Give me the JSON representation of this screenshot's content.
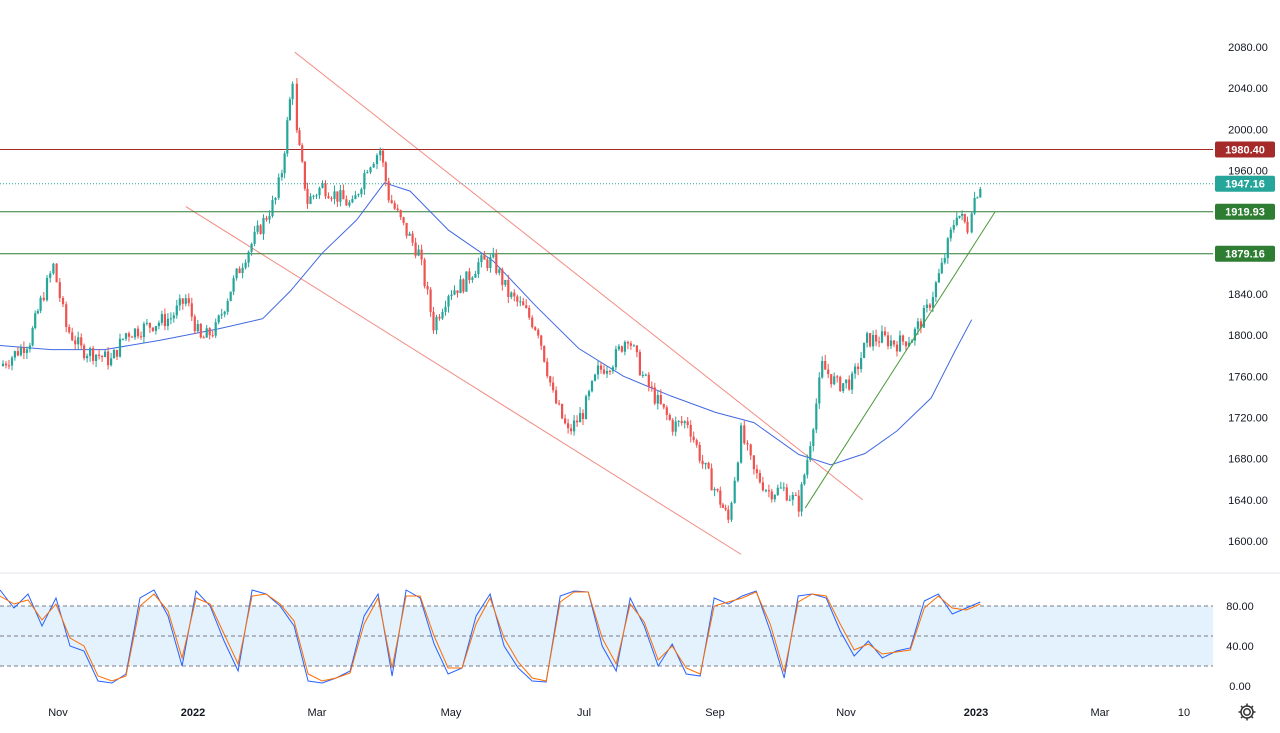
{
  "colors": {
    "up": "#26a69a",
    "down": "#ef5350",
    "ma": "#4169e1",
    "channel": "#f28b82",
    "trendline": "#4a9a3a",
    "resistance": "#a52a2a",
    "support": "#2e7d32",
    "current": "#26a69a",
    "stoch_k": "#2962ff",
    "stoch_d": "#ff6d00",
    "stoch_band": "#e3f2fd"
  },
  "settings_icon": "gear-icon",
  "chart_data": [
    {
      "type": "candlestick",
      "title": "",
      "xlabel": "",
      "ylabel": "",
      "x_tick_labels": [
        "Nov",
        "2022",
        "Mar",
        "May",
        "Jul",
        "Sep",
        "Nov",
        "2023",
        "Mar",
        "10"
      ],
      "y_tick_labels": [
        "2080.00",
        "2040.00",
        "2000.00",
        "1960.00",
        "1840.00",
        "1800.00",
        "1760.00",
        "1720.00",
        "1680.00",
        "1640.00",
        "1600.00"
      ],
      "ylim": [
        1585,
        2095
      ],
      "grid": false,
      "horizontal_levels": [
        {
          "value": 1980.4,
          "label": "1980.40",
          "kind": "resistance"
        },
        {
          "value": 1919.93,
          "label": "1919.93",
          "kind": "support"
        },
        {
          "value": 1879.16,
          "label": "1879.16",
          "kind": "support"
        }
      ],
      "current_price": {
        "value": 1947.16,
        "label": "1947.16"
      },
      "moving_average_points": [
        [
          "2021-10-22",
          1790
        ],
        [
          "2021-11-15",
          1786
        ],
        [
          "2021-12-10",
          1786
        ],
        [
          "2022-01-05",
          1795
        ],
        [
          "2022-02-01",
          1806
        ],
        [
          "2022-02-22",
          1816
        ],
        [
          "2022-03-07",
          1843
        ],
        [
          "2022-03-22",
          1880
        ],
        [
          "2022-04-07",
          1912
        ],
        [
          "2022-04-20",
          1948
        ],
        [
          "2022-05-02",
          1940
        ],
        [
          "2022-05-20",
          1902
        ],
        [
          "2022-06-10",
          1872
        ],
        [
          "2022-06-30",
          1828
        ],
        [
          "2022-07-20",
          1787
        ],
        [
          "2022-08-10",
          1760
        ],
        [
          "2022-09-01",
          1741
        ],
        [
          "2022-09-22",
          1725
        ],
        [
          "2022-10-10",
          1715
        ],
        [
          "2022-10-31",
          1684
        ],
        [
          "2022-11-15",
          1674
        ],
        [
          "2022-12-01",
          1685
        ],
        [
          "2022-12-16",
          1707
        ],
        [
          "2023-01-01",
          1739
        ],
        [
          "2023-01-12",
          1784
        ],
        [
          "2023-01-20",
          1815
        ]
      ],
      "candles_close": [
        [
          "2021-10-22",
          1770
        ],
        [
          "2021-10-29",
          1782
        ],
        [
          "2021-11-05",
          1795
        ],
        [
          "2021-11-10",
          1832
        ],
        [
          "2021-11-16",
          1867
        ],
        [
          "2021-11-22",
          1808
        ],
        [
          "2021-11-29",
          1786
        ],
        [
          "2021-12-06",
          1782
        ],
        [
          "2021-12-13",
          1775
        ],
        [
          "2021-12-20",
          1802
        ],
        [
          "2021-12-27",
          1806
        ],
        [
          "2022-01-03",
          1812
        ],
        [
          "2022-01-10",
          1817
        ],
        [
          "2022-01-17",
          1835
        ],
        [
          "2022-01-24",
          1795
        ],
        [
          "2022-01-31",
          1806
        ],
        [
          "2022-02-07",
          1845
        ],
        [
          "2022-02-14",
          1878
        ],
        [
          "2022-02-21",
          1905
        ],
        [
          "2022-02-28",
          1932
        ],
        [
          "2022-03-03",
          1960
        ],
        [
          "2022-03-08",
          2050
        ],
        [
          "2022-03-10",
          1995
        ],
        [
          "2022-03-15",
          1930
        ],
        [
          "2022-03-22",
          1945
        ],
        [
          "2022-03-29",
          1935
        ],
        [
          "2022-04-05",
          1925
        ],
        [
          "2022-04-12",
          1965
        ],
        [
          "2022-04-18",
          1980
        ],
        [
          "2022-04-22",
          1935
        ],
        [
          "2022-04-29",
          1905
        ],
        [
          "2022-05-06",
          1880
        ],
        [
          "2022-05-13",
          1810
        ],
        [
          "2022-05-20",
          1842
        ],
        [
          "2022-05-27",
          1850
        ],
        [
          "2022-06-03",
          1870
        ],
        [
          "2022-06-10",
          1872
        ],
        [
          "2022-06-17",
          1840
        ],
        [
          "2022-06-24",
          1826
        ],
        [
          "2022-07-01",
          1805
        ],
        [
          "2022-07-08",
          1741
        ],
        [
          "2022-07-15",
          1705
        ],
        [
          "2022-07-22",
          1725
        ],
        [
          "2022-07-29",
          1765
        ],
        [
          "2022-08-05",
          1775
        ],
        [
          "2022-08-12",
          1800
        ],
        [
          "2022-08-19",
          1760
        ],
        [
          "2022-08-26",
          1735
        ],
        [
          "2022-09-02",
          1712
        ],
        [
          "2022-09-09",
          1716
        ],
        [
          "2022-09-16",
          1675
        ],
        [
          "2022-09-23",
          1645
        ],
        [
          "2022-09-28",
          1620
        ],
        [
          "2022-10-04",
          1705
        ],
        [
          "2022-10-10",
          1667
        ],
        [
          "2022-10-17",
          1648
        ],
        [
          "2022-10-24",
          1650
        ],
        [
          "2022-10-31",
          1635
        ],
        [
          "2022-11-04",
          1680
        ],
        [
          "2022-11-11",
          1770
        ],
        [
          "2022-11-18",
          1752
        ],
        [
          "2022-11-25",
          1755
        ],
        [
          "2022-12-02",
          1795
        ],
        [
          "2022-12-09",
          1797
        ],
        [
          "2022-12-16",
          1792
        ],
        [
          "2022-12-23",
          1798
        ],
        [
          "2022-12-30",
          1824
        ],
        [
          "2023-01-06",
          1866
        ],
        [
          "2023-01-13",
          1920
        ],
        [
          "2023-01-18",
          1905
        ],
        [
          "2023-01-20",
          1926
        ],
        [
          "2023-01-24",
          1947.16
        ]
      ]
    },
    {
      "type": "line",
      "title": "",
      "y_tick_labels": [
        "80.00",
        "40.00",
        "0.00"
      ],
      "ylim": [
        -5,
        105
      ],
      "levels": [
        80,
        50,
        20
      ],
      "series": [
        {
          "key": "k",
          "values": [
            96,
            78,
            92,
            60,
            88,
            40,
            35,
            5,
            3,
            12,
            88,
            96,
            70,
            20,
            95,
            80,
            45,
            15,
            96,
            92,
            80,
            60,
            5,
            3,
            8,
            15,
            70,
            92,
            10,
            96,
            88,
            42,
            12,
            18,
            70,
            92,
            40,
            18,
            5,
            4,
            90,
            95,
            94,
            40,
            15,
            88,
            60,
            20,
            42,
            12,
            10,
            88,
            82,
            90,
            95,
            55,
            8,
            90,
            92,
            88,
            55,
            30,
            45,
            28,
            35,
            38,
            85,
            92,
            72,
            78,
            84
          ]
        },
        {
          "key": "d",
          "values": [
            90,
            82,
            86,
            66,
            82,
            48,
            40,
            10,
            5,
            10,
            80,
            92,
            75,
            28,
            88,
            82,
            52,
            22,
            90,
            92,
            82,
            65,
            12,
            5,
            8,
            13,
            62,
            88,
            18,
            90,
            90,
            50,
            18,
            18,
            62,
            88,
            48,
            24,
            8,
            5,
            84,
            94,
            94,
            48,
            22,
            82,
            64,
            26,
            40,
            18,
            12,
            80,
            84,
            88,
            94,
            62,
            14,
            84,
            92,
            90,
            62,
            36,
            42,
            32,
            34,
            36,
            78,
            90,
            78,
            76,
            82
          ]
        }
      ]
    }
  ]
}
